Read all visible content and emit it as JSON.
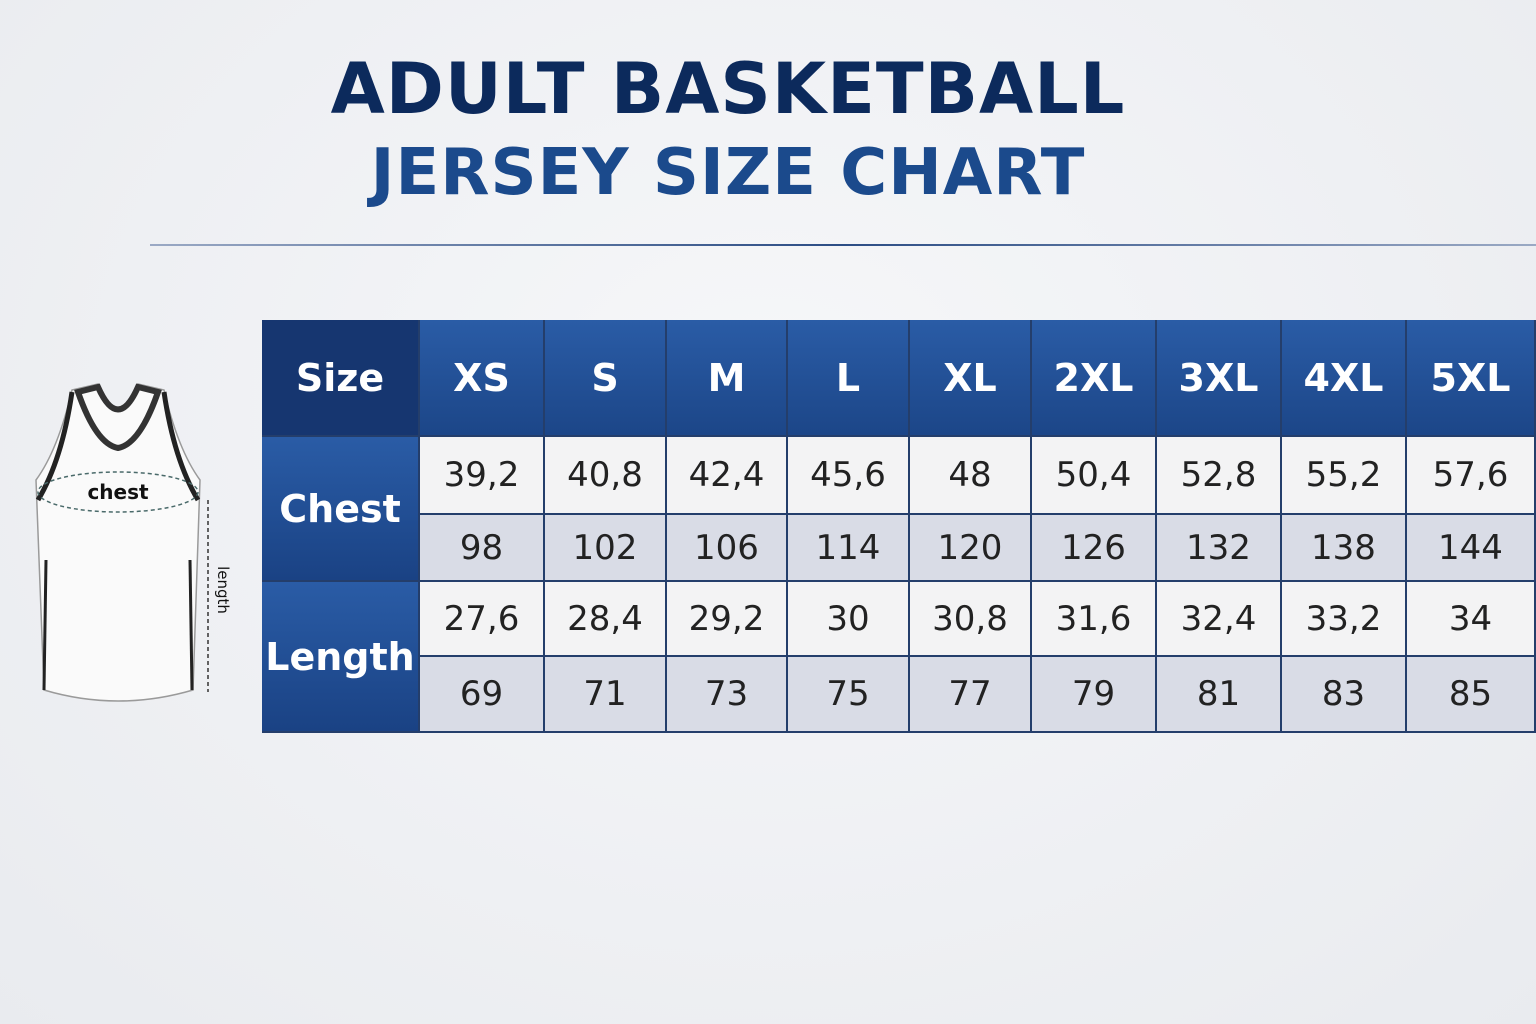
{
  "header": {
    "title_line1": "ADULT BASKETBALL",
    "title_line2": "JERSEY SIZE CHART"
  },
  "diagram": {
    "chest_label": "chest",
    "length_label": "length"
  },
  "table": {
    "corner": "Size",
    "sizes": [
      "XS",
      "S",
      "M",
      "L",
      "XL",
      "2XL",
      "3XL",
      "4XL",
      "5XL"
    ],
    "groups": [
      {
        "label": "Chest",
        "rows": [
          [
            "39,2",
            "40,8",
            "42,4",
            "45,6",
            "48",
            "50,4",
            "52,8",
            "55,2",
            "57,6"
          ],
          [
            "98",
            "102",
            "106",
            "114",
            "120",
            "126",
            "132",
            "138",
            "144"
          ]
        ]
      },
      {
        "label": "Length",
        "rows": [
          [
            "27,6",
            "28,4",
            "29,2",
            "30",
            "30,8",
            "31,6",
            "32,4",
            "33,2",
            "34"
          ],
          [
            "69",
            "71",
            "73",
            "75",
            "77",
            "79",
            "81",
            "83",
            "85"
          ]
        ]
      }
    ]
  }
}
